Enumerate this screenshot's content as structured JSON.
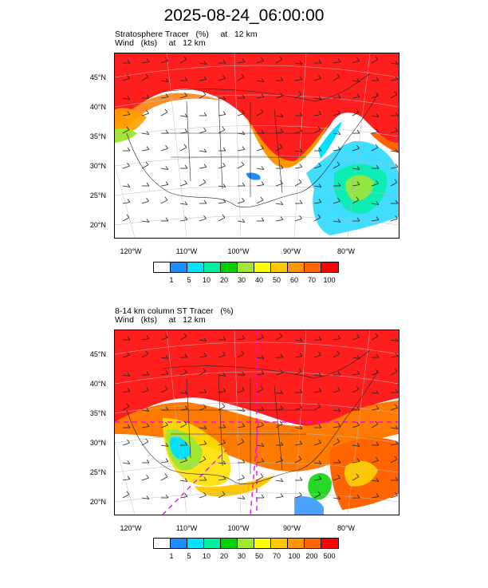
{
  "title": "2025-08-24_06:00:00",
  "panels": [
    {
      "title_line1": "Stratosphere Tracer   (%)     at   12 km",
      "title_line2": "Wind   (kts)     at   12 km",
      "colorbar_labels": [
        "1",
        "5",
        "10",
        "20",
        "30",
        "40",
        "50",
        "60",
        "70",
        "100"
      ]
    },
    {
      "title_line1": "8-14 km column ST Tracer   (%)",
      "title_line2": "Wind   (kts)     at   12 km",
      "colorbar_labels": [
        "1",
        "5",
        "10",
        "20",
        "30",
        "50",
        "70",
        "100",
        "200",
        "500"
      ]
    }
  ],
  "lat_labels": [
    "45°N",
    "40°N",
    "35°N",
    "30°N",
    "25°N",
    "20°N"
  ],
  "lon_labels": [
    "120°W",
    "110°W",
    "100°W",
    "90°W",
    "80°W"
  ],
  "colorbar_colors": [
    "#ffffff",
    "#1e8cff",
    "#00e1ff",
    "#00f0a0",
    "#00d200",
    "#a0e632",
    "#ffff00",
    "#ffc800",
    "#ff9600",
    "#ff6400",
    "#ff0000"
  ],
  "map_colors": {
    "stratosphere_fill": "#ff1e1e",
    "background": "#ffffff"
  }
}
